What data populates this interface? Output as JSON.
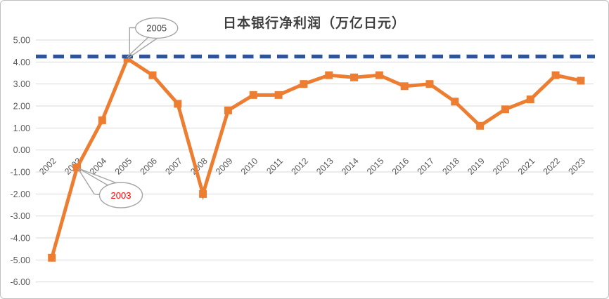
{
  "window": {
    "background": "#ffffff",
    "border_color": "#bfbfbf"
  },
  "chart_data": {
    "type": "line",
    "title": "日本银行净利润（万亿日元）",
    "categories": [
      "2002",
      "2003",
      "2004",
      "2005",
      "2006",
      "2007",
      "2008",
      "2009",
      "2010",
      "2011",
      "2012",
      "2013",
      "2014",
      "2015",
      "2016",
      "2017",
      "2018",
      "2019",
      "2020",
      "2021",
      "2022",
      "2023"
    ],
    "series": [
      {
        "values": [
          -4.9,
          -0.8,
          1.35,
          4.15,
          3.4,
          2.1,
          -2.0,
          1.8,
          2.5,
          2.5,
          3.0,
          3.4,
          3.3,
          3.4,
          2.9,
          3.0,
          2.2,
          1.1,
          1.85,
          2.3,
          3.4,
          3.15
        ],
        "color": "#ED7D31",
        "marker": "square",
        "line_width": 5
      }
    ],
    "reference_line": {
      "value": 4.25,
      "color": "#2F5597",
      "style": "dashed",
      "width": 5.5
    },
    "ylim": [
      -6,
      5
    ],
    "y_tick_step": 1,
    "y_ticks": [
      "5.00",
      "4.00",
      "3.00",
      "2.00",
      "1.00",
      "0.00",
      "-1.00",
      "-2.00",
      "-3.00",
      "-4.00",
      "-5.00",
      "-6.00"
    ],
    "xlabel": "",
    "ylabel": "",
    "grid": true,
    "gridline_color": "#d9d9d9",
    "axis_label_color": "#595959",
    "x_label_rotation": -45,
    "legend": "none",
    "annotations": [
      {
        "text": "2005",
        "target_category": "2005",
        "text_color": "#404040",
        "bubble_fill": "#ffffff",
        "bubble_border": "#a6a6a6"
      },
      {
        "text": "2003",
        "target_category": "2003",
        "text_color": "#ff0000",
        "bubble_fill": "#ffffff",
        "bubble_border": "#a6a6a6"
      }
    ]
  }
}
